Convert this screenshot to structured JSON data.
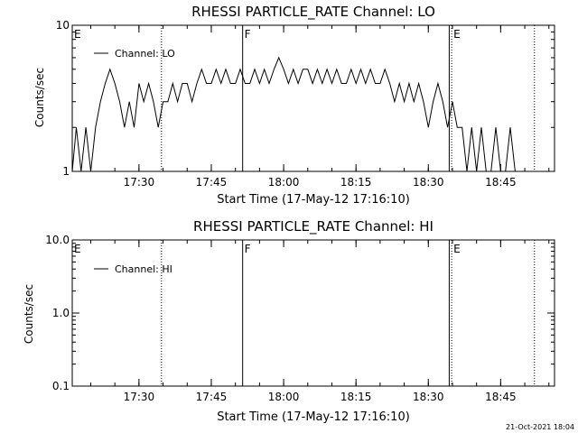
{
  "footer": {
    "timestamp": "21-Oct-2021 18:04"
  },
  "chart_data": [
    {
      "type": "line",
      "title": "RHESSI PARTICLE_RATE Channel: LO",
      "xlabel": "Start Time (17-May-12 17:16:10)",
      "ylabel": "Counts/sec",
      "yscale": "log",
      "ylim": [
        1,
        10
      ],
      "yticks": [
        {
          "value": 1,
          "label": "1"
        },
        {
          "value": 10,
          "label": "10"
        }
      ],
      "xlim": [
        "17:16:10",
        "18:56:10"
      ],
      "xticks": [
        "17:30",
        "17:45",
        "18:00",
        "18:15",
        "18:30",
        "18:45"
      ],
      "legend": {
        "position": "top-left",
        "entry": "Channel: LO"
      },
      "markers": [
        {
          "time": "17:16:10",
          "label": "E",
          "style": "none"
        },
        {
          "time": "17:34:40",
          "label": "",
          "style": "dotted"
        },
        {
          "time": "17:51:30",
          "label": "F",
          "style": "solid"
        },
        {
          "time": "18:34:20",
          "label": "",
          "style": "solid"
        },
        {
          "time": "18:34:50",
          "label": "E",
          "style": "dotted"
        },
        {
          "time": "18:52:00",
          "label": "",
          "style": "dotted"
        }
      ],
      "series": [
        {
          "name": "Channel: LO",
          "points": [
            [
              "17:16:10",
              1
            ],
            [
              "17:17:00",
              2
            ],
            [
              "17:18:00",
              1
            ],
            [
              "17:19:00",
              2
            ],
            [
              "17:20:00",
              1
            ],
            [
              "17:21:00",
              2
            ],
            [
              "17:22:00",
              3
            ],
            [
              "17:23:00",
              4
            ],
            [
              "17:24:00",
              5
            ],
            [
              "17:25:00",
              4
            ],
            [
              "17:26:00",
              3
            ],
            [
              "17:27:00",
              2
            ],
            [
              "17:28:00",
              3
            ],
            [
              "17:29:00",
              2
            ],
            [
              "17:30:00",
              4
            ],
            [
              "17:31:00",
              3
            ],
            [
              "17:32:00",
              4
            ],
            [
              "17:33:00",
              3
            ],
            [
              "17:34:00",
              2
            ],
            [
              "17:35:00",
              3
            ],
            [
              "17:36:00",
              3
            ],
            [
              "17:37:00",
              4
            ],
            [
              "17:38:00",
              3
            ],
            [
              "17:39:00",
              4
            ],
            [
              "17:40:00",
              4
            ],
            [
              "17:41:00",
              3
            ],
            [
              "17:42:00",
              4
            ],
            [
              "17:43:00",
              5
            ],
            [
              "17:44:00",
              4
            ],
            [
              "17:45:00",
              4
            ],
            [
              "17:46:00",
              5
            ],
            [
              "17:47:00",
              4
            ],
            [
              "17:48:00",
              5
            ],
            [
              "17:49:00",
              4
            ],
            [
              "17:50:00",
              4
            ],
            [
              "17:51:00",
              5
            ],
            [
              "17:52:00",
              4
            ],
            [
              "17:53:00",
              4
            ],
            [
              "17:54:00",
              5
            ],
            [
              "17:55:00",
              4
            ],
            [
              "17:56:00",
              5
            ],
            [
              "17:57:00",
              4
            ],
            [
              "17:58:00",
              5
            ],
            [
              "17:59:00",
              6
            ],
            [
              "18:00:00",
              5
            ],
            [
              "18:01:00",
              4
            ],
            [
              "18:02:00",
              5
            ],
            [
              "18:03:00",
              4
            ],
            [
              "18:04:00",
              5
            ],
            [
              "18:05:00",
              5
            ],
            [
              "18:06:00",
              4
            ],
            [
              "18:07:00",
              5
            ],
            [
              "18:08:00",
              4
            ],
            [
              "18:09:00",
              5
            ],
            [
              "18:10:00",
              4
            ],
            [
              "18:11:00",
              5
            ],
            [
              "18:12:00",
              4
            ],
            [
              "18:13:00",
              4
            ],
            [
              "18:14:00",
              5
            ],
            [
              "18:15:00",
              4
            ],
            [
              "18:16:00",
              5
            ],
            [
              "18:17:00",
              4
            ],
            [
              "18:18:00",
              5
            ],
            [
              "18:19:00",
              4
            ],
            [
              "18:20:00",
              4
            ],
            [
              "18:21:00",
              5
            ],
            [
              "18:22:00",
              4
            ],
            [
              "18:23:00",
              3
            ],
            [
              "18:24:00",
              4
            ],
            [
              "18:25:00",
              3
            ],
            [
              "18:26:00",
              4
            ],
            [
              "18:27:00",
              3
            ],
            [
              "18:28:00",
              4
            ],
            [
              "18:29:00",
              3
            ],
            [
              "18:30:00",
              2
            ],
            [
              "18:31:00",
              3
            ],
            [
              "18:32:00",
              4
            ],
            [
              "18:33:00",
              3
            ],
            [
              "18:34:00",
              2
            ],
            [
              "18:35:00",
              3
            ],
            [
              "18:36:00",
              2
            ],
            [
              "18:37:00",
              2
            ],
            [
              "18:38:00",
              1
            ],
            [
              "18:39:00",
              2
            ],
            [
              "18:40:00",
              1
            ],
            [
              "18:41:00",
              2
            ],
            [
              "18:42:00",
              1
            ],
            [
              "18:43:00",
              1
            ],
            [
              "18:44:00",
              2
            ],
            [
              "18:45:00",
              1
            ],
            [
              "18:46:00",
              1
            ],
            [
              "18:47:00",
              2
            ],
            [
              "18:48:00",
              1
            ],
            [
              "18:49:00",
              1
            ]
          ]
        }
      ]
    },
    {
      "type": "line",
      "title": "RHESSI PARTICLE_RATE Channel: HI",
      "xlabel": "Start Time (17-May-12 17:16:10)",
      "ylabel": "Counts/sec",
      "yscale": "log",
      "ylim": [
        0.1,
        10
      ],
      "yticks": [
        {
          "value": 0.1,
          "label": "0.1"
        },
        {
          "value": 1,
          "label": "1.0"
        },
        {
          "value": 10,
          "label": "10.0"
        }
      ],
      "xlim": [
        "17:16:10",
        "18:56:10"
      ],
      "xticks": [
        "17:30",
        "17:45",
        "18:00",
        "18:15",
        "18:30",
        "18:45"
      ],
      "legend": {
        "position": "top-left",
        "entry": "Channel: HI"
      },
      "markers": [
        {
          "time": "17:16:10",
          "label": "E",
          "style": "none"
        },
        {
          "time": "17:34:40",
          "label": "",
          "style": "dotted"
        },
        {
          "time": "17:51:30",
          "label": "F",
          "style": "solid"
        },
        {
          "time": "18:34:20",
          "label": "",
          "style": "solid"
        },
        {
          "time": "18:34:50",
          "label": "E",
          "style": "dotted"
        },
        {
          "time": "18:52:00",
          "label": "",
          "style": "dotted"
        }
      ],
      "series": [
        {
          "name": "Channel: HI",
          "points": []
        }
      ]
    }
  ]
}
